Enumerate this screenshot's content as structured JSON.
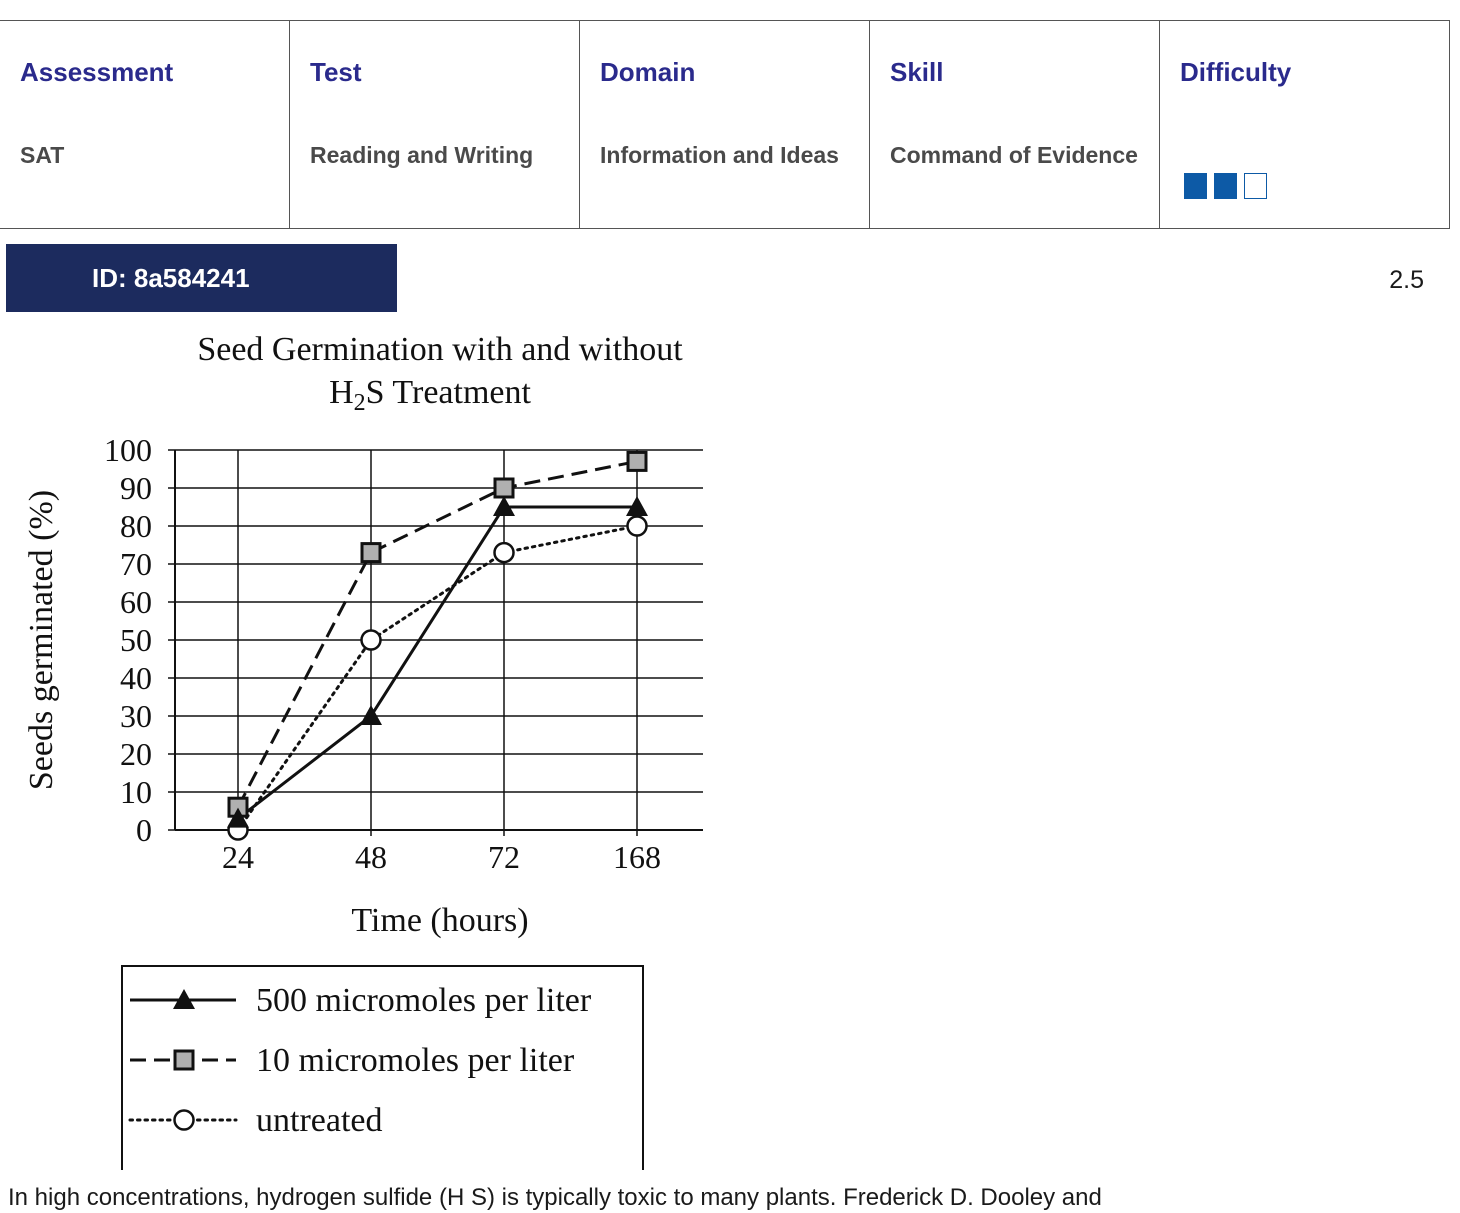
{
  "header": {
    "columns": [
      {
        "heading": "Assessment",
        "value": "SAT"
      },
      {
        "heading": "Test",
        "value": "Reading and Writing"
      },
      {
        "heading": "Domain",
        "value": "Information and Ideas"
      },
      {
        "heading": "Skill",
        "value": "Command of Evidence"
      },
      {
        "heading": "Difficulty",
        "value": ""
      }
    ],
    "difficulty_level": 2,
    "difficulty_max": 3,
    "difficulty_color": "#0d5aa6",
    "heading_color": "#2a2a8c"
  },
  "question": {
    "id_label": "ID: 8a584241",
    "version": "2.5",
    "banner_color": "#1c2b5e"
  },
  "chart_data": {
    "type": "line",
    "title_line1": "Seed Germination with and without",
    "title_line2_prefix": "H",
    "title_line2_sub": "2",
    "title_line2_suffix": "S Treatment",
    "xlabel": "Time (hours)",
    "ylabel": "Seeds germinated (%)",
    "categories": [
      "24",
      "48",
      "72",
      "168"
    ],
    "y_ticks": [
      "0",
      "10",
      "20",
      "30",
      "40",
      "50",
      "60",
      "70",
      "80",
      "90",
      "100"
    ],
    "ylim": [
      0,
      100
    ],
    "grid": true,
    "legend_position": "bottom",
    "series": [
      {
        "name": "500 micromoles per liter",
        "values": [
          3,
          30,
          85,
          85
        ],
        "marker": "triangle",
        "line": "solid"
      },
      {
        "name": "10 micromoles per liter",
        "values": [
          6,
          73,
          90,
          97
        ],
        "marker": "square",
        "line": "dashed"
      },
      {
        "name": "untreated",
        "values": [
          0,
          50,
          73,
          80
        ],
        "marker": "circle",
        "line": "dotted"
      }
    ]
  },
  "passage": {
    "text": "In high concentrations, hydrogen sulfide (H S) is typically toxic to many plants. Frederick D. Dooley and"
  }
}
